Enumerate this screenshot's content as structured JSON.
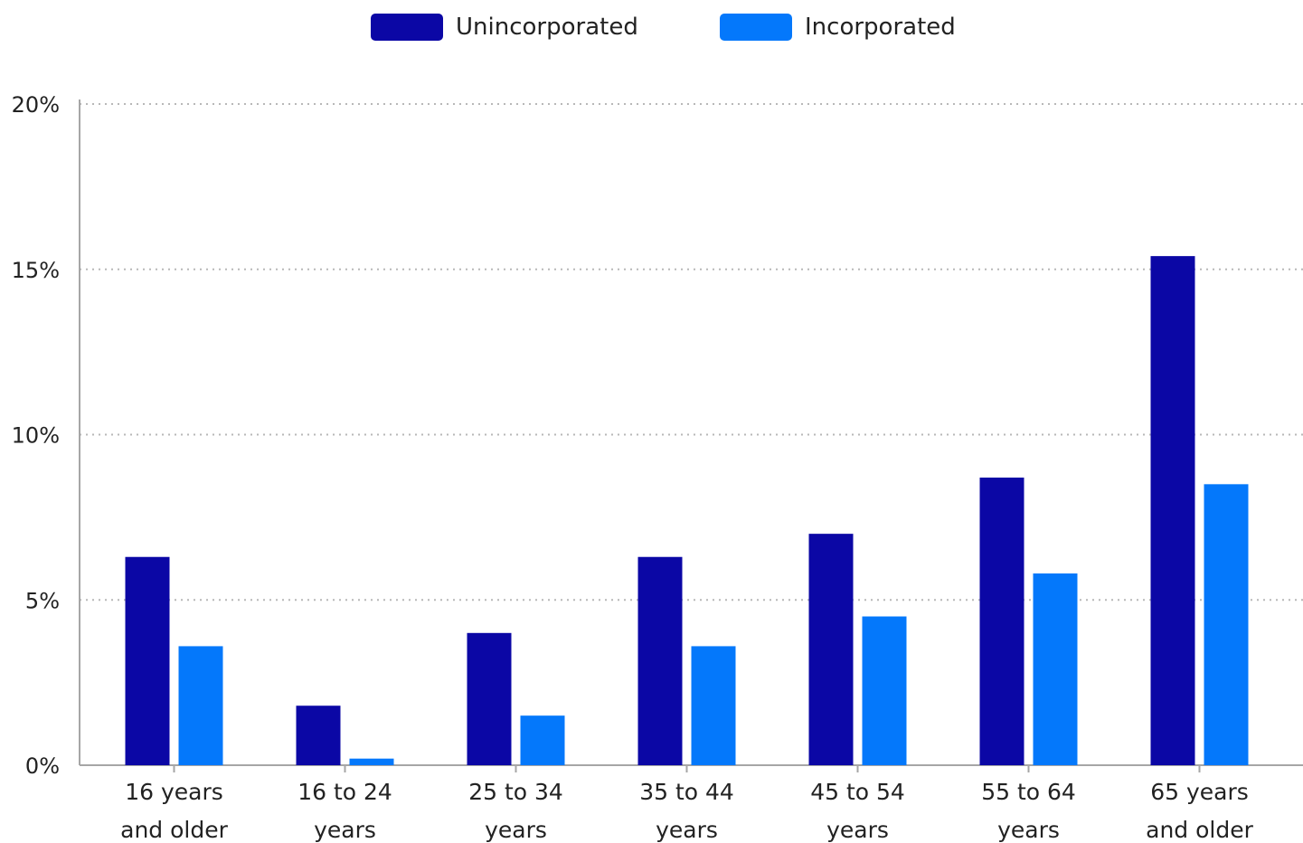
{
  "chart_data": {
    "type": "bar",
    "title": "",
    "xlabel": "",
    "ylabel": "",
    "categories": [
      [
        "16 years",
        "and older"
      ],
      [
        "16 to 24",
        "years"
      ],
      [
        "25 to 34",
        "years"
      ],
      [
        "35 to 44",
        "years"
      ],
      [
        "45 to 54",
        "years"
      ],
      [
        "55 to 64",
        "years"
      ],
      [
        "65 years",
        "and older"
      ]
    ],
    "series": [
      {
        "name": "Unincorporated",
        "color": "#0b07a5",
        "values": [
          6.3,
          1.8,
          4.0,
          6.3,
          7.0,
          8.7,
          15.4
        ]
      },
      {
        "name": "Incorporated",
        "color": "#0478fb",
        "values": [
          3.6,
          0.2,
          1.5,
          3.6,
          4.5,
          5.8,
          8.5
        ]
      }
    ],
    "ylim": [
      0,
      20
    ],
    "yticks": [
      0,
      5,
      10,
      15,
      20
    ],
    "ytick_labels": [
      "0%",
      "5%",
      "10%",
      "15%",
      "20%"
    ],
    "grid": true,
    "legend_position": "top-center"
  }
}
